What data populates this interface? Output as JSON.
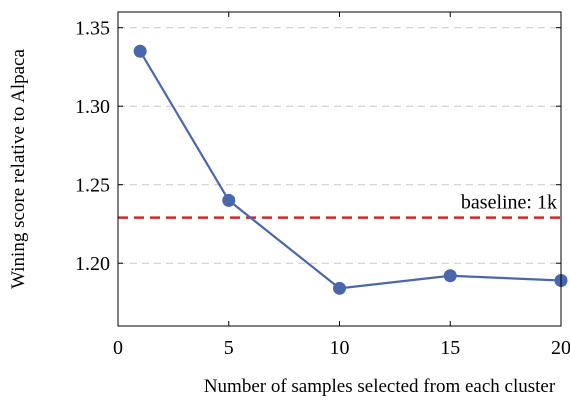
{
  "chart_data": {
    "type": "line",
    "xlabel": "Number of samples selected from each cluster",
    "ylabel": "Wining score relative to Alpaca",
    "x": [
      1,
      5,
      10,
      15,
      20
    ],
    "series": [
      {
        "values": [
          1.335,
          1.24,
          1.184,
          1.192,
          1.189
        ],
        "color": "#4a67ad"
      }
    ],
    "xlim": [
      0,
      20
    ],
    "ylim": [
      1.16,
      1.36
    ],
    "xticks": [
      0,
      5,
      10,
      15,
      20
    ],
    "xtick_labels": [
      "0",
      "5",
      "10",
      "15",
      "20"
    ],
    "yticks": [
      1.2,
      1.25,
      1.3,
      1.35
    ],
    "ytick_labels": [
      "1.20",
      "1.25",
      "1.30",
      "1.35"
    ],
    "grid": "horizontal-dashed",
    "reference_line": {
      "y": 1.229,
      "label": "baseline: 1k",
      "color": "#d62728"
    }
  }
}
